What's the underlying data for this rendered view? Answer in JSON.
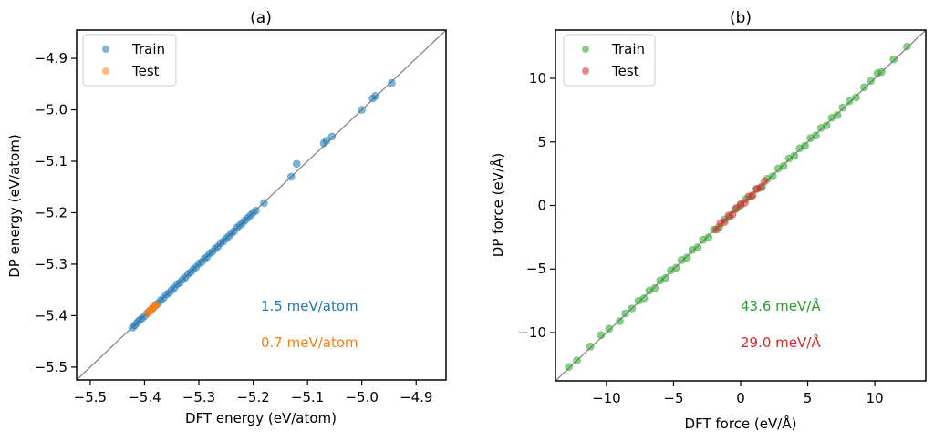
{
  "chart_data": [
    {
      "type": "scatter",
      "title": "(a)",
      "xlabel": "DFT energy (eV/atom)",
      "ylabel": "DP energy (eV/atom)",
      "xlim": [
        -5.525,
        -4.845
      ],
      "ylim": [
        -5.525,
        -4.845
      ],
      "xticks": [
        -5.5,
        -5.4,
        -5.3,
        -5.2,
        -5.1,
        -5.0,
        -4.9
      ],
      "yticks": [
        -5.5,
        -5.4,
        -5.3,
        -5.2,
        -5.1,
        -5.0,
        -4.9
      ],
      "xtick_labels": [
        "−5.5",
        "−5.4",
        "−5.3",
        "−5.2",
        "−5.1",
        "−5.0",
        "−4.9"
      ],
      "ytick_labels": [
        "−5.5",
        "−5.4",
        "−5.3",
        "−5.2",
        "−5.1",
        "−5.0",
        "−4.9"
      ],
      "diagonal": true,
      "legend": "top-left",
      "series": [
        {
          "name": "Train",
          "color": "#1f77b4",
          "points": [
            [
              -5.422,
              -5.423
            ],
            [
              -5.418,
              -5.419
            ],
            [
              -5.414,
              -5.414
            ],
            [
              -5.41,
              -5.409
            ],
            [
              -5.405,
              -5.406
            ],
            [
              -5.4,
              -5.401
            ],
            [
              -5.395,
              -5.395
            ],
            [
              -5.39,
              -5.39
            ],
            [
              -5.385,
              -5.386
            ],
            [
              -5.38,
              -5.379
            ],
            [
              -5.375,
              -5.376
            ],
            [
              -5.37,
              -5.37
            ],
            [
              -5.365,
              -5.366
            ],
            [
              -5.36,
              -5.359
            ],
            [
              -5.355,
              -5.356
            ],
            [
              -5.35,
              -5.35
            ],
            [
              -5.345,
              -5.346
            ],
            [
              -5.34,
              -5.339
            ],
            [
              -5.335,
              -5.336
            ],
            [
              -5.33,
              -5.33
            ],
            [
              -5.325,
              -5.326
            ],
            [
              -5.32,
              -5.319
            ],
            [
              -5.315,
              -5.316
            ],
            [
              -5.31,
              -5.31
            ],
            [
              -5.305,
              -5.306
            ],
            [
              -5.3,
              -5.299
            ],
            [
              -5.295,
              -5.296
            ],
            [
              -5.29,
              -5.29
            ],
            [
              -5.285,
              -5.286
            ],
            [
              -5.28,
              -5.279
            ],
            [
              -5.275,
              -5.276
            ],
            [
              -5.27,
              -5.27
            ],
            [
              -5.265,
              -5.266
            ],
            [
              -5.26,
              -5.259
            ],
            [
              -5.255,
              -5.256
            ],
            [
              -5.25,
              -5.25
            ],
            [
              -5.245,
              -5.246
            ],
            [
              -5.24,
              -5.24
            ],
            [
              -5.235,
              -5.236
            ],
            [
              -5.23,
              -5.229
            ],
            [
              -5.225,
              -5.225
            ],
            [
              -5.22,
              -5.22
            ],
            [
              -5.215,
              -5.215
            ],
            [
              -5.21,
              -5.21
            ],
            [
              -5.205,
              -5.205
            ],
            [
              -5.2,
              -5.2
            ],
            [
              -5.195,
              -5.196
            ],
            [
              -5.18,
              -5.181
            ],
            [
              -5.13,
              -5.13
            ],
            [
              -5.12,
              -5.105
            ],
            [
              -5.07,
              -5.065
            ],
            [
              -5.065,
              -5.06
            ],
            [
              -5.055,
              -5.052
            ],
            [
              -5.0,
              -5.0
            ],
            [
              -4.98,
              -4.978
            ],
            [
              -4.975,
              -4.973
            ],
            [
              -4.945,
              -4.948
            ]
          ]
        },
        {
          "name": "Test",
          "color": "#ff7f0e",
          "points": [
            [
              -5.394,
              -5.396
            ],
            [
              -5.391,
              -5.392
            ],
            [
              -5.388,
              -5.389
            ],
            [
              -5.386,
              -5.386
            ],
            [
              -5.383,
              -5.384
            ],
            [
              -5.38,
              -5.381
            ],
            [
              -5.378,
              -5.379
            ]
          ]
        }
      ],
      "annotations": [
        {
          "text": "1.5 meV/atom",
          "color": "#1f77b4"
        },
        {
          "text": "0.7 meV/atom",
          "color": "#ff7f0e"
        }
      ]
    },
    {
      "type": "scatter",
      "title": "(b)",
      "xlabel": "DFT force (eV/Å)",
      "ylabel": "DP force (eV/Å)",
      "xlim": [
        -13.8,
        13.8
      ],
      "ylim": [
        -13.8,
        13.8
      ],
      "xticks": [
        -10,
        -5,
        0,
        5,
        10
      ],
      "yticks": [
        -10,
        -5,
        0,
        5,
        10
      ],
      "xtick_labels": [
        "−10",
        "−5",
        "0",
        "5",
        "10"
      ],
      "ytick_labels": [
        "−10",
        "−5",
        "0",
        "5",
        "10"
      ],
      "diagonal": true,
      "legend": "top-left",
      "series": [
        {
          "name": "Train",
          "color": "#2ca02c",
          "points": [
            [
              -12.8,
              -12.7
            ],
            [
              -12.2,
              -12.2
            ],
            [
              -11.2,
              -11.1
            ],
            [
              -10.4,
              -10.2
            ],
            [
              -9.8,
              -9.7
            ],
            [
              -9.0,
              -9.1
            ],
            [
              -8.6,
              -8.5
            ],
            [
              -8.1,
              -8.1
            ],
            [
              -7.6,
              -7.5
            ],
            [
              -7.2,
              -7.3
            ],
            [
              -6.8,
              -6.7
            ],
            [
              -6.4,
              -6.5
            ],
            [
              -6.0,
              -5.9
            ],
            [
              -5.6,
              -5.7
            ],
            [
              -5.2,
              -5.1
            ],
            [
              -4.8,
              -4.9
            ],
            [
              -4.4,
              -4.3
            ],
            [
              -4.0,
              -4.1
            ],
            [
              -3.6,
              -3.5
            ],
            [
              -3.2,
              -3.3
            ],
            [
              -2.8,
              -2.7
            ],
            [
              -2.4,
              -2.5
            ],
            [
              -2.0,
              -1.9
            ],
            [
              -1.6,
              -1.7
            ],
            [
              -1.2,
              -1.1
            ],
            [
              -0.8,
              -0.9
            ],
            [
              -0.4,
              -0.3
            ],
            [
              0.0,
              0.0
            ],
            [
              0.4,
              0.5
            ],
            [
              0.8,
              0.7
            ],
            [
              1.2,
              1.3
            ],
            [
              1.6,
              1.5
            ],
            [
              2.0,
              2.1
            ],
            [
              2.4,
              2.3
            ],
            [
              2.8,
              2.9
            ],
            [
              3.2,
              3.1
            ],
            [
              3.6,
              3.7
            ],
            [
              4.0,
              3.9
            ],
            [
              4.4,
              4.5
            ],
            [
              4.8,
              4.7
            ],
            [
              5.2,
              5.3
            ],
            [
              5.6,
              5.5
            ],
            [
              6.0,
              6.1
            ],
            [
              6.4,
              6.3
            ],
            [
              6.8,
              6.9
            ],
            [
              7.2,
              7.1
            ],
            [
              7.6,
              7.7
            ],
            [
              8.1,
              8.2
            ],
            [
              8.6,
              8.5
            ],
            [
              9.2,
              9.3
            ],
            [
              9.7,
              9.8
            ],
            [
              10.2,
              10.4
            ],
            [
              10.5,
              10.5
            ],
            [
              11.4,
              11.5
            ],
            [
              12.4,
              12.5
            ]
          ]
        },
        {
          "name": "Test",
          "color": "#d62728",
          "points": [
            [
              -1.8,
              -1.9
            ],
            [
              -1.5,
              -1.4
            ],
            [
              -1.2,
              -1.3
            ],
            [
              -0.9,
              -0.8
            ],
            [
              -0.6,
              -0.7
            ],
            [
              -0.3,
              -0.2
            ],
            [
              0.0,
              0.1
            ],
            [
              0.3,
              0.2
            ],
            [
              0.6,
              0.7
            ],
            [
              0.9,
              0.8
            ],
            [
              1.2,
              1.3
            ],
            [
              1.5,
              1.4
            ],
            [
              1.8,
              1.9
            ]
          ]
        }
      ],
      "annotations": [
        {
          "text": "43.6 meV/Å",
          "color": "#2ca02c"
        },
        {
          "text": "29.0 meV/Å",
          "color": "#d62728"
        }
      ]
    }
  ]
}
